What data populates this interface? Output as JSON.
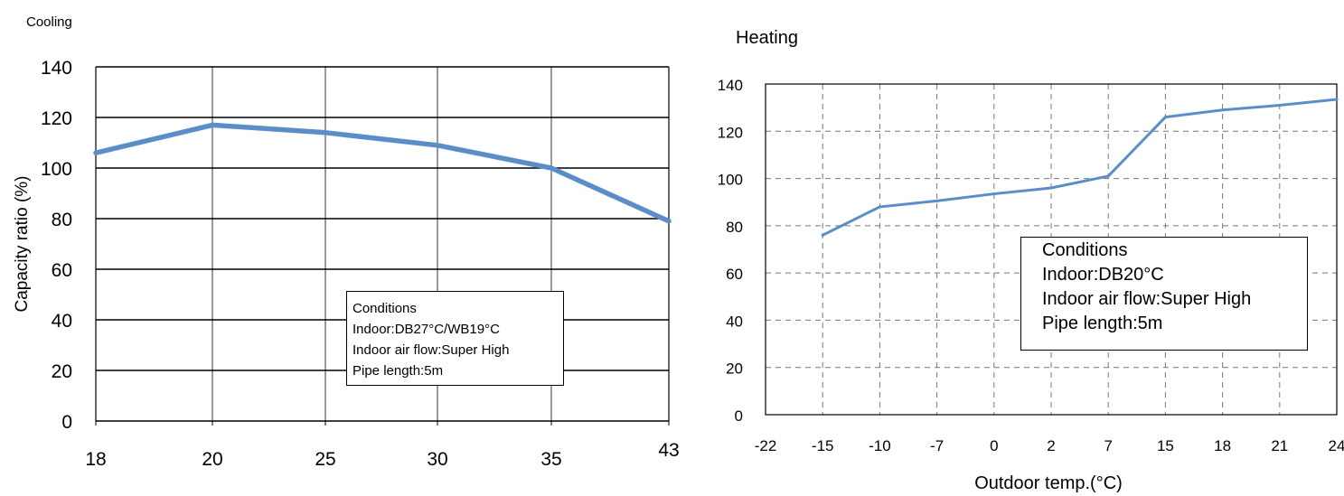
{
  "chart_data": [
    {
      "type": "line",
      "title": "Cooling",
      "xlabel": "",
      "ylabel": "Capacity ratio (%)",
      "categories": [
        "18",
        "20",
        "25",
        "30",
        "35",
        "43"
      ],
      "yticks": [
        "0",
        "20",
        "40",
        "60",
        "80",
        "100",
        "120",
        "140"
      ],
      "ylim": [
        0,
        140
      ],
      "grid": true,
      "line_color": "#5b8ec9",
      "series": [
        {
          "values": [
            106,
            117,
            114,
            109,
            100,
            79
          ]
        }
      ],
      "conditions": {
        "title": "Conditions",
        "lines": [
          "Indoor:DB27°C/WB19°C",
          "Indoor air flow:Super High",
          "Pipe length:5m"
        ]
      }
    },
    {
      "type": "line",
      "title": "Heating",
      "xlabel": "Outdoor temp.(°C)",
      "ylabel": "",
      "categories": [
        "-22",
        "-15",
        "-10",
        "-7",
        "0",
        "2",
        "7",
        "15",
        "18",
        "21",
        "24"
      ],
      "yticks": [
        "0",
        "20",
        "40",
        "60",
        "80",
        "100",
        "120",
        "140"
      ],
      "ylim": [
        0,
        140
      ],
      "grid": true,
      "grid_style": "dashed",
      "line_color": "#5b8ec9",
      "series": [
        {
          "values": [
            null,
            76,
            88,
            90.5,
            93.5,
            96,
            101,
            126,
            129,
            131,
            133.5
          ]
        }
      ],
      "conditions": {
        "title": "Conditions",
        "lines": [
          "Indoor:DB20°C",
          "Indoor air flow:Super High",
          "Pipe length:5m"
        ]
      }
    }
  ]
}
